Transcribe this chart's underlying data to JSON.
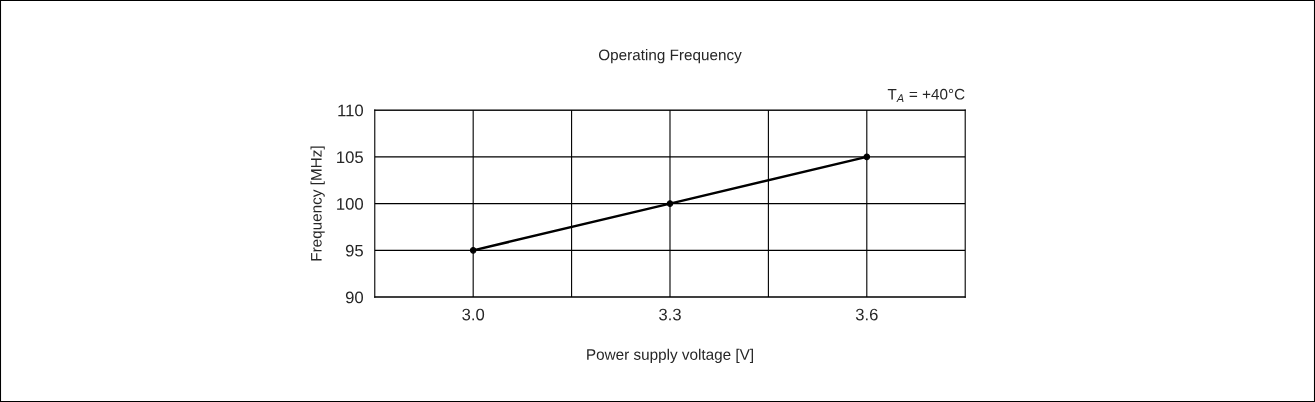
{
  "chart_data": {
    "type": "line",
    "title": "Operating Frequency",
    "xlabel": "Power supply voltage [V]",
    "ylabel": "Frequency [MHz]",
    "annotations": [
      "T$_{A}$ = +40°C"
    ],
    "x": [
      3.0,
      3.3,
      3.6
    ],
    "series": [
      {
        "color": "#000000",
        "values": [
          95,
          100,
          105
        ]
      }
    ],
    "xlim": [
      2.85,
      3.75
    ],
    "xticks": [
      {
        "value": 3.0,
        "label": "3.0"
      },
      {
        "value": 3.15,
        "label": null
      },
      {
        "value": 3.3,
        "label": "3.3"
      },
      {
        "value": 3.45,
        "label": null
      },
      {
        "value": 3.6,
        "label": "3.6"
      }
    ],
    "ylim": [
      90,
      110
    ],
    "yticks": [
      90,
      95,
      100,
      105,
      110
    ],
    "grid": true,
    "marker": "circle",
    "line_style": "solid"
  }
}
